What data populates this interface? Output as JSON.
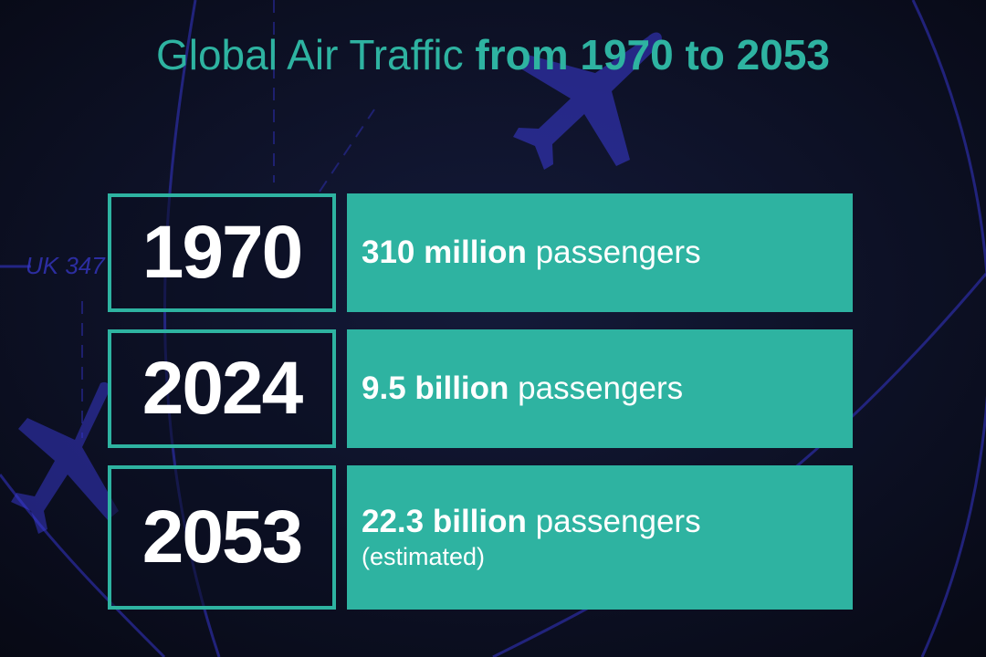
{
  "title": {
    "light": "Global Air Traffic",
    "bold": "from 1970 to 2053"
  },
  "background": {
    "flight_label": "UK 347",
    "plane_icon": "airplane-icon"
  },
  "rows": [
    {
      "year": "1970",
      "amount": "310 million",
      "unit": "passengers"
    },
    {
      "year": "2024",
      "amount": "9.5 billion",
      "unit": "passengers"
    },
    {
      "year": "2053",
      "amount": "22.3 billion",
      "unit": "passengers",
      "note": "(estimated)"
    }
  ],
  "colors": {
    "accent": "#2eb3a1",
    "background": "#0b0f22",
    "radar_lines": "#3a3ad6"
  }
}
